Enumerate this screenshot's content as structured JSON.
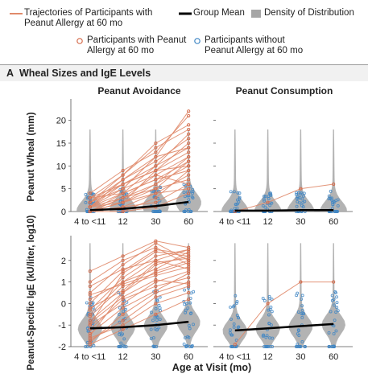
{
  "legend": {
    "trajectories": "Trajectories of Participants with\nPeanut Allergy at 60 mo",
    "group_mean": "Group Mean",
    "density": "Density of Distribution",
    "with_allergy": "Participants with Peanut\nAllergy at 60 mo",
    "without_allergy": "Participants without\nPeanut Allergy at 60 mo"
  },
  "panel": {
    "letter": "A",
    "title": "Wheal Sizes and IgE Levels"
  },
  "colors": {
    "trajectory": "#e08a6a",
    "allergic_point": "#d46a4a",
    "non_allergic_point": "#3f86c4",
    "density": "#a6a6a6",
    "mean": "#000000"
  },
  "chart_data": [
    {
      "type": "scatter",
      "title": "Peanut Avoidance",
      "ylabel": "Peanut Wheal (mm)",
      "xlabel": "",
      "categories": [
        "4 to <11",
        "12",
        "30",
        "60"
      ],
      "yticks": [
        0,
        5,
        10,
        15,
        20
      ],
      "ylim": [
        0,
        24
      ],
      "group_mean": [
        0.3,
        0.6,
        1.2,
        2.1
      ],
      "trajectories_allergic": [
        [
          0,
          3,
          8,
          12
        ],
        [
          1,
          5,
          12,
          22
        ],
        [
          2,
          6,
          9,
          15
        ],
        [
          0,
          2,
          6,
          10
        ],
        [
          3,
          8,
          14,
          18
        ],
        [
          0,
          1,
          4,
          8
        ],
        [
          1,
          4,
          7,
          11
        ],
        [
          2,
          7,
          11,
          16
        ],
        [
          0,
          0,
          3,
          9
        ],
        [
          4,
          9,
          13,
          21
        ],
        [
          1,
          3,
          5,
          7
        ],
        [
          0,
          4,
          10,
          14
        ],
        [
          2,
          5,
          8,
          6
        ],
        [
          0,
          2,
          9,
          13
        ],
        [
          3,
          6,
          10,
          17
        ],
        [
          1,
          2,
          4,
          5
        ],
        [
          0,
          3,
          6,
          12
        ],
        [
          2,
          8,
          15,
          19
        ],
        [
          0,
          1,
          2,
          6
        ],
        [
          1,
          6,
          9,
          10
        ],
        [
          3,
          4,
          7,
          9
        ],
        [
          0,
          2,
          5,
          11
        ],
        [
          1,
          7,
          12,
          14
        ],
        [
          0,
          0,
          1,
          4
        ]
      ]
    },
    {
      "type": "scatter",
      "title": "Peanut Consumption",
      "ylabel": "",
      "xlabel": "",
      "categories": [
        "4 to <11",
        "12",
        "30",
        "60"
      ],
      "yticks": [
        0,
        5,
        10,
        15,
        20
      ],
      "ylim": [
        0,
        24
      ],
      "group_mean": [
        0.2,
        0.2,
        0.3,
        0.3
      ],
      "trajectories_allergic": [
        [
          0,
          2,
          5,
          6
        ]
      ]
    },
    {
      "type": "scatter",
      "title": "",
      "ylabel": "Peanut-Specific IgE (kU/liter, log10)",
      "xlabel": "Age at Visit (mo)",
      "categories": [
        "4 to <11",
        "12",
        "30",
        "60"
      ],
      "yticks": [
        -2,
        -1,
        0,
        1,
        2
      ],
      "ylim": [
        -2,
        3
      ],
      "group_mean": [
        -1.15,
        -1.1,
        -1.0,
        -0.85
      ],
      "trajectories_allergic": [
        [
          -1.5,
          0.5,
          1.5,
          2.0
        ],
        [
          -0.5,
          1.0,
          2.0,
          2.5
        ],
        [
          0.0,
          1.5,
          2.5,
          2.3
        ],
        [
          -1.0,
          0.0,
          1.0,
          1.5
        ],
        [
          -1.8,
          -0.5,
          0.5,
          1.0
        ],
        [
          0.5,
          1.8,
          2.8,
          2.0
        ],
        [
          -0.8,
          0.5,
          1.8,
          2.2
        ],
        [
          -1.2,
          0.2,
          0.8,
          1.2
        ],
        [
          1.0,
          2.0,
          2.6,
          1.8
        ],
        [
          -0.3,
          1.2,
          2.2,
          2.5
        ],
        [
          -1.6,
          -1.0,
          0.0,
          0.5
        ],
        [
          -0.6,
          0.8,
          1.3,
          1.7
        ],
        [
          0.2,
          1.0,
          1.6,
          2.4
        ],
        [
          -1.9,
          -1.2,
          -0.5,
          0.2
        ],
        [
          -0.9,
          0.3,
          1.1,
          0.9
        ],
        [
          1.5,
          2.2,
          2.9,
          2.6
        ],
        [
          -1.4,
          -0.2,
          0.6,
          1.4
        ],
        [
          0.8,
          1.6,
          2.0,
          1.6
        ],
        [
          -0.2,
          0.6,
          1.9,
          2.1
        ],
        [
          -1.7,
          -0.8,
          0.3,
          0.8
        ],
        [
          -1.0,
          1.4,
          2.4,
          2.2
        ],
        [
          0.4,
          0.9,
          1.4,
          1.9
        ]
      ]
    },
    {
      "type": "scatter",
      "title": "",
      "ylabel": "",
      "xlabel": "Age at Visit (mo)",
      "categories": [
        "4 to <11",
        "12",
        "30",
        "60"
      ],
      "yticks": [
        -2,
        -1,
        0,
        1,
        2
      ],
      "ylim": [
        -2,
        3
      ],
      "group_mean": [
        -1.25,
        -1.15,
        -1.05,
        -0.95
      ],
      "trajectories_allergic": [
        [
          -1.9,
          0.0,
          1.0,
          1.0
        ]
      ]
    }
  ]
}
